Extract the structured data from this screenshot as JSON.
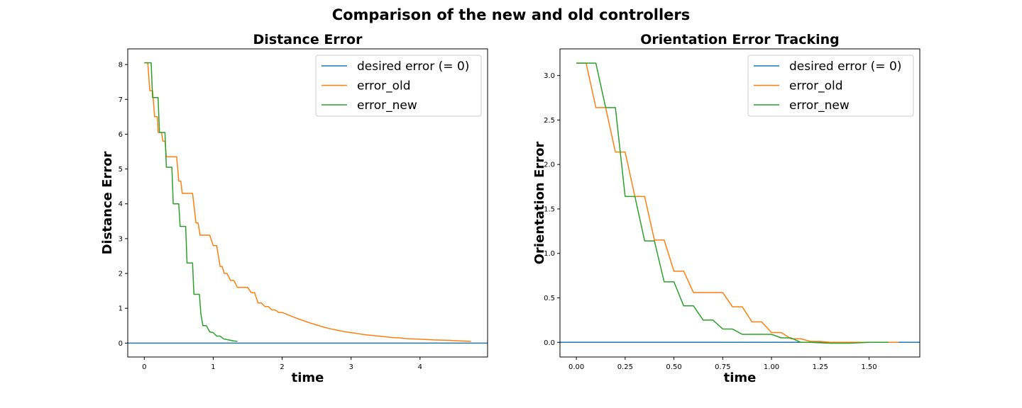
{
  "figure": {
    "title": "Comparison of the new and old controllers"
  },
  "colors": {
    "desired": "#1f77b4",
    "old": "#ff7f0e",
    "new": "#2ca02c"
  },
  "chart_data": [
    {
      "type": "line",
      "title": "Distance Error",
      "xlabel": "time",
      "ylabel": "Distance Error",
      "xlim": [
        -0.24,
        4.98
      ],
      "ylim": [
        -0.4,
        8.45
      ],
      "xticks": [
        0,
        1,
        2,
        3,
        4
      ],
      "yticks": [
        0,
        1,
        2,
        3,
        4,
        5,
        6,
        7,
        8
      ],
      "legend": "top-right",
      "grid": false,
      "series": [
        {
          "name": "desired error (= 0)",
          "key": "desired",
          "infinite_horizontal": true,
          "x": [
            -0.24,
            4.98
          ],
          "y": [
            0,
            0
          ]
        },
        {
          "name": "error_old",
          "key": "old",
          "x": [
            0.0,
            0.05,
            0.08,
            0.12,
            0.15,
            0.19,
            0.2,
            0.25,
            0.27,
            0.3,
            0.32,
            0.35,
            0.37,
            0.4,
            0.42,
            0.47,
            0.5,
            0.53,
            0.55,
            0.6,
            0.65,
            0.7,
            0.75,
            0.78,
            0.81,
            0.85,
            0.9,
            0.95,
            1.0,
            1.05,
            1.1,
            1.13,
            1.16,
            1.2,
            1.25,
            1.3,
            1.35,
            1.4,
            1.45,
            1.5,
            1.55,
            1.6,
            1.65,
            1.7,
            1.75,
            1.8,
            1.85,
            1.9,
            1.95,
            2.0,
            2.1,
            2.2,
            2.3,
            2.4,
            2.5,
            2.6,
            2.7,
            2.8,
            2.9,
            3.0,
            3.1,
            3.2,
            3.3,
            3.4,
            3.5,
            3.6,
            3.7,
            3.8,
            3.9,
            4.0,
            4.2,
            4.4,
            4.6,
            4.74
          ],
          "y": [
            8.05,
            8.05,
            7.25,
            7.25,
            6.5,
            6.5,
            6.05,
            6.05,
            5.8,
            5.8,
            5.35,
            5.35,
            5.35,
            5.35,
            5.35,
            5.35,
            4.65,
            4.65,
            4.3,
            4.3,
            4.3,
            4.3,
            3.45,
            3.45,
            3.1,
            3.1,
            3.1,
            3.1,
            2.8,
            2.8,
            2.2,
            2.2,
            2.0,
            2.0,
            1.8,
            1.8,
            1.6,
            1.6,
            1.6,
            1.6,
            1.45,
            1.45,
            1.15,
            1.15,
            1.05,
            1.05,
            0.95,
            0.95,
            0.88,
            0.88,
            0.8,
            0.72,
            0.65,
            0.58,
            0.52,
            0.46,
            0.41,
            0.37,
            0.33,
            0.3,
            0.27,
            0.24,
            0.22,
            0.2,
            0.18,
            0.16,
            0.15,
            0.13,
            0.12,
            0.11,
            0.09,
            0.08,
            0.06,
            0.05
          ]
        },
        {
          "name": "error_new",
          "key": "new",
          "x": [
            0.0,
            0.05,
            0.1,
            0.12,
            0.15,
            0.2,
            0.22,
            0.25,
            0.3,
            0.32,
            0.35,
            0.4,
            0.42,
            0.45,
            0.5,
            0.52,
            0.55,
            0.6,
            0.62,
            0.65,
            0.7,
            0.72,
            0.75,
            0.8,
            0.82,
            0.85,
            0.9,
            0.95,
            1.0,
            1.05,
            1.1,
            1.15,
            1.2,
            1.25,
            1.3,
            1.35
          ],
          "y": [
            8.05,
            8.05,
            8.05,
            7.05,
            7.05,
            7.05,
            6.05,
            6.05,
            6.05,
            5.05,
            5.05,
            5.05,
            4.0,
            4.0,
            4.0,
            3.35,
            3.35,
            3.35,
            2.3,
            2.3,
            2.3,
            1.4,
            1.4,
            1.4,
            0.85,
            0.5,
            0.5,
            0.32,
            0.3,
            0.2,
            0.2,
            0.12,
            0.1,
            0.08,
            0.06,
            0.05
          ]
        }
      ]
    },
    {
      "type": "line",
      "title": "Orientation Error Tracking",
      "xlabel": "time",
      "ylabel": "Orientation Error",
      "xlim": [
        -0.084,
        1.76
      ],
      "ylim": [
        -0.165,
        3.3
      ],
      "xticks": [
        0.0,
        0.25,
        0.5,
        0.75,
        1.0,
        1.25,
        1.5
      ],
      "xtick_labels": [
        "0.00",
        "0.25",
        "0.50",
        "0.75",
        "1.00",
        "1.25",
        "1.50"
      ],
      "yticks": [
        0.0,
        0.5,
        1.0,
        1.5,
        2.0,
        2.5,
        3.0
      ],
      "ytick_labels": [
        "0.0",
        "0.5",
        "1.0",
        "1.5",
        "2.0",
        "2.5",
        "3.0"
      ],
      "legend": "top-right",
      "grid": false,
      "series": [
        {
          "name": "desired error (= 0)",
          "key": "desired",
          "infinite_horizontal": true,
          "x": [
            -0.084,
            1.76
          ],
          "y": [
            0,
            0
          ]
        },
        {
          "name": "error_old",
          "key": "old",
          "x": [
            0.0,
            0.05,
            0.1,
            0.15,
            0.2,
            0.25,
            0.3,
            0.35,
            0.4,
            0.45,
            0.5,
            0.55,
            0.6,
            0.65,
            0.7,
            0.75,
            0.8,
            0.85,
            0.9,
            0.95,
            1.0,
            1.05,
            1.1,
            1.15,
            1.2,
            1.25,
            1.3,
            1.4,
            1.5,
            1.65
          ],
          "y": [
            3.14,
            3.14,
            2.64,
            2.64,
            2.14,
            2.14,
            1.64,
            1.64,
            1.15,
            1.15,
            0.8,
            0.8,
            0.56,
            0.56,
            0.56,
            0.56,
            0.4,
            0.4,
            0.23,
            0.23,
            0.11,
            0.11,
            0.04,
            0.04,
            0.01,
            0.01,
            0.0,
            0.0,
            0.0,
            0.0
          ]
        },
        {
          "name": "error_new",
          "key": "new",
          "x": [
            0.0,
            0.05,
            0.1,
            0.15,
            0.2,
            0.25,
            0.3,
            0.35,
            0.4,
            0.45,
            0.5,
            0.55,
            0.6,
            0.65,
            0.7,
            0.75,
            0.8,
            0.85,
            0.9,
            0.95,
            1.0,
            1.05,
            1.1,
            1.15,
            1.2,
            1.3,
            1.4,
            1.5,
            1.6
          ],
          "y": [
            3.14,
            3.14,
            3.14,
            2.64,
            2.64,
            1.64,
            1.64,
            1.14,
            1.14,
            0.68,
            0.68,
            0.41,
            0.41,
            0.25,
            0.25,
            0.15,
            0.15,
            0.09,
            0.09,
            0.09,
            0.09,
            0.05,
            0.05,
            0.0,
            0.0,
            -0.01,
            -0.01,
            0.0,
            0.0
          ]
        }
      ]
    }
  ]
}
